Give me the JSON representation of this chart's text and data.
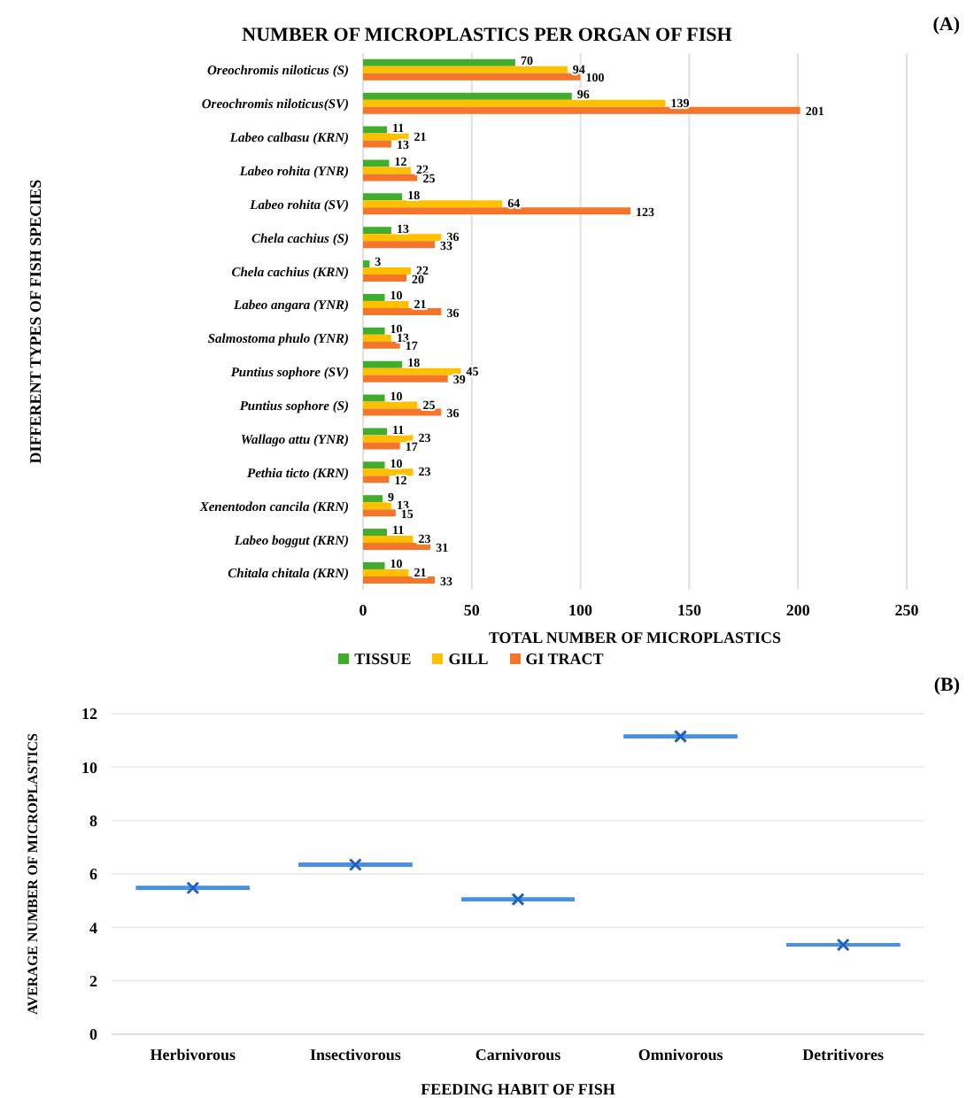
{
  "chart_data": [
    {
      "type": "bar",
      "orientation": "horizontal",
      "title": "NUMBER OF MICROPLASTICS PER ORGAN OF FISH",
      "xlabel": "TOTAL NUMBER OF MICROPLASTICS",
      "ylabel": "DIFFERENT TYPES OF FISH SPECIES",
      "annotations": [
        "(A)"
      ],
      "categories": [
        "Oreochromis niloticus (S)",
        "Oreochromis niloticus(SV)",
        "Labeo calbasu (KRN)",
        "Labeo rohita (YNR)",
        "Labeo rohita (SV)",
        "Chela cachius (S)",
        "Chela cachius (KRN)",
        "Labeo angara (YNR)",
        "Salmostoma phulo (YNR)",
        "Puntius sophore (SV)",
        "Puntius sophore (S)",
        "Wallago attu (YNR)",
        "Pethia ticto (KRN)",
        "Xenentodon cancila (KRN)",
        "Labeo boggut (KRN)",
        "Chitala chitala (KRN)"
      ],
      "series": [
        {
          "name": "TISSUE",
          "color": "#41ad2f",
          "values": [
            70,
            96,
            11,
            12,
            18,
            13,
            3,
            10,
            10,
            18,
            10,
            11,
            10,
            9,
            11,
            10
          ]
        },
        {
          "name": "GILL",
          "color": "#ffc000",
          "values": [
            94,
            139,
            21,
            22,
            64,
            36,
            22,
            21,
            13,
            45,
            25,
            23,
            23,
            13,
            23,
            21
          ]
        },
        {
          "name": "GI TRACT",
          "color": "#f4762a",
          "values": [
            100,
            201,
            13,
            25,
            123,
            33,
            20,
            36,
            17,
            39,
            36,
            17,
            12,
            15,
            31,
            33
          ]
        }
      ],
      "xlim": [
        0,
        250
      ],
      "xticks": [
        0,
        50,
        100,
        150,
        200,
        250
      ],
      "grid": "x",
      "legend": "bottom",
      "data_labels": true
    },
    {
      "type": "box",
      "xlabel": "FEEDING HABIT OF FISH",
      "ylabel": "AVERAGE NUMBER OF MICROPLASTICS",
      "annotations": [
        "(B)"
      ],
      "categories": [
        "Herbivorous",
        "Insectivorous",
        "Carnivorous",
        "Omnivorous",
        "Detritivores"
      ],
      "color": "#4a90e2",
      "marker": "cross",
      "boxes": [
        {
          "low": 5.48,
          "q1": 5.48,
          "median": 5.48,
          "q3": 5.48,
          "high": 5.48,
          "mean": 5.48
        },
        {
          "low": 6.35,
          "q1": 6.35,
          "median": 6.35,
          "q3": 6.35,
          "high": 6.35,
          "mean": 6.35
        },
        {
          "low": 5.05,
          "q1": 5.05,
          "median": 5.05,
          "q3": 5.05,
          "high": 5.05,
          "mean": 5.05
        },
        {
          "low": 11.15,
          "q1": 11.15,
          "median": 11.15,
          "q3": 11.15,
          "high": 11.15,
          "mean": 11.15
        },
        {
          "low": 3.35,
          "q1": 3.35,
          "median": 3.35,
          "q3": 3.35,
          "high": 3.35,
          "mean": 3.35
        }
      ],
      "ylim": [
        0,
        12
      ],
      "yticks": [
        0,
        2,
        4,
        6,
        8,
        10,
        12
      ],
      "grid": "y",
      "legend": false
    }
  ]
}
